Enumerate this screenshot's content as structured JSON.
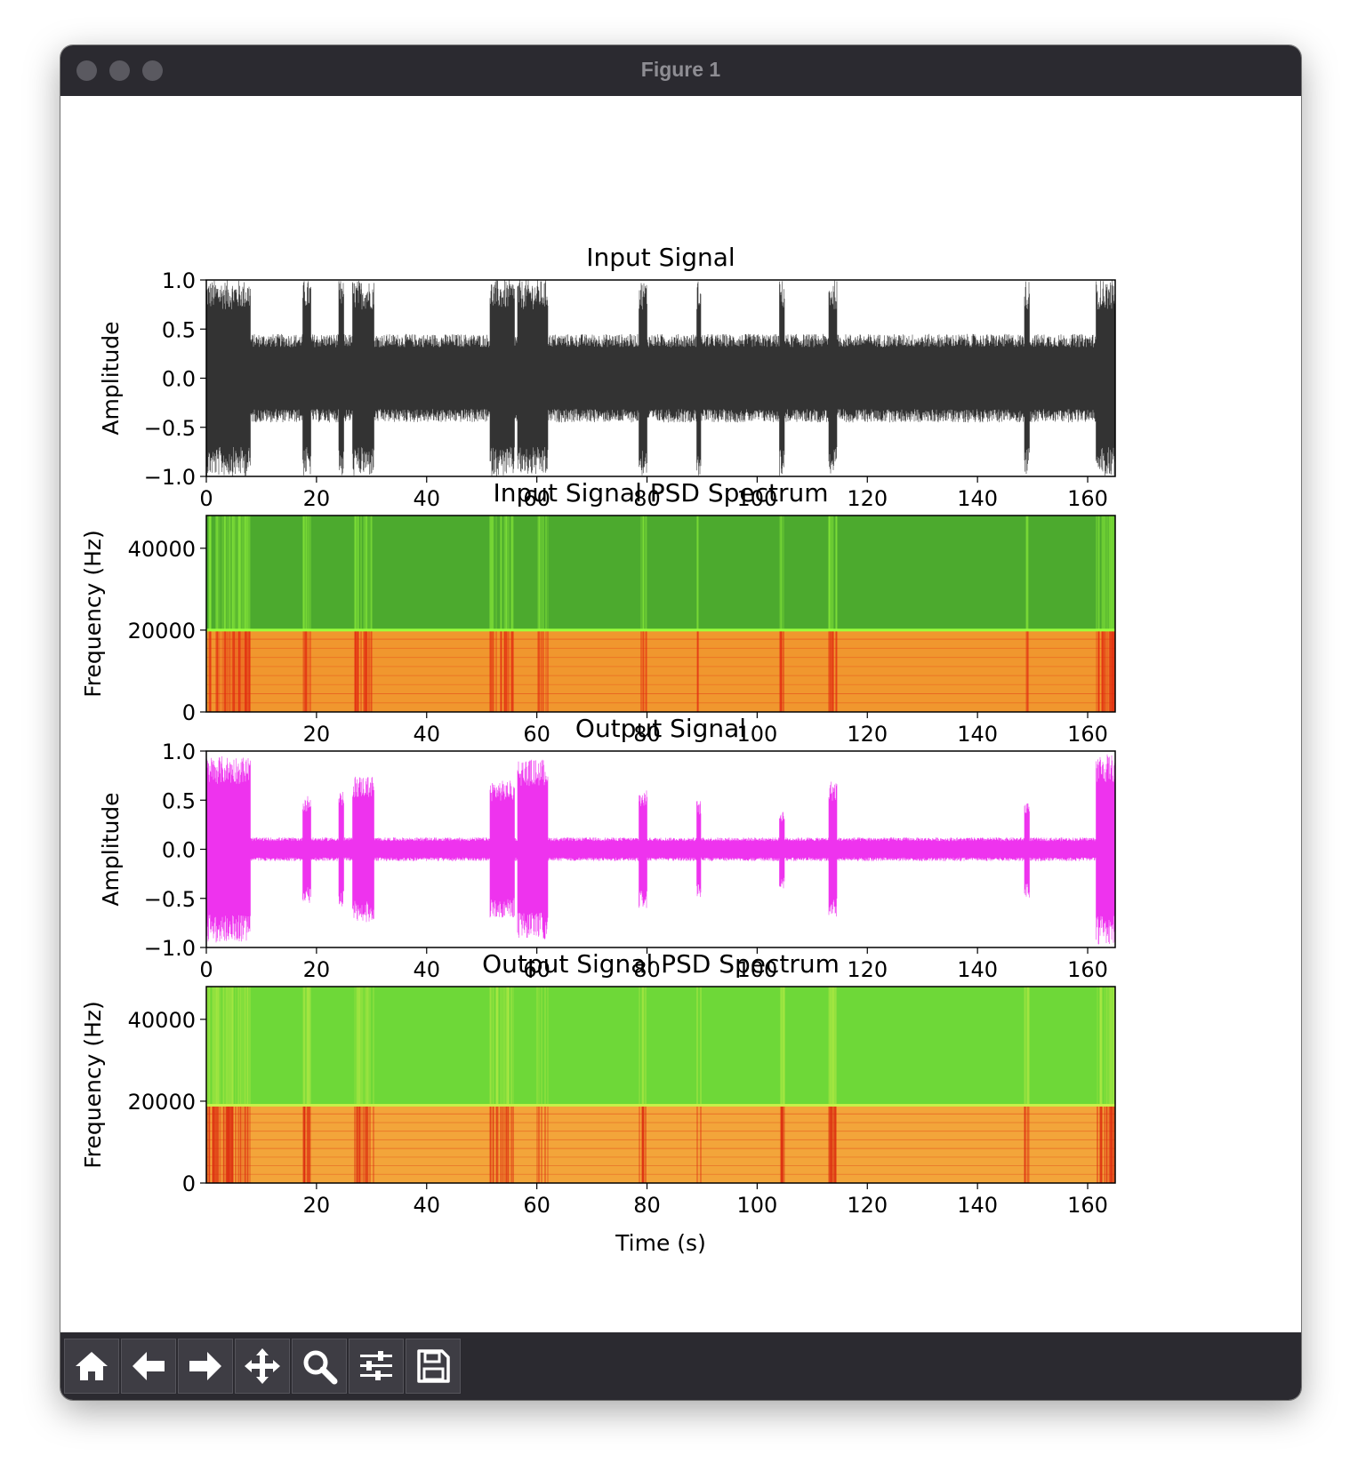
{
  "window": {
    "title": "Figure 1"
  },
  "toolbar": {
    "buttons": [
      {
        "icon": "home-icon"
      },
      {
        "icon": "back-arrow-icon"
      },
      {
        "icon": "forward-arrow-icon"
      },
      {
        "icon": "pan-icon"
      },
      {
        "icon": "zoom-icon"
      },
      {
        "icon": "configure-subplots-icon"
      },
      {
        "icon": "save-icon"
      }
    ]
  },
  "chart_data": [
    {
      "type": "line",
      "title": "Input Signal",
      "xlabel": "",
      "ylabel": "Amplitude",
      "xlim": [
        0,
        165
      ],
      "ylim": [
        -1.0,
        1.0
      ],
      "xticks": [
        0,
        20,
        40,
        60,
        80,
        100,
        120,
        140,
        160
      ],
      "yticks": [
        "1.0",
        "0.5",
        "0.0",
        "−0.5",
        "−1.0"
      ],
      "color": "#333333",
      "baseline_amplitude": 0.45,
      "bursts": [
        {
          "start": 0,
          "end": 8,
          "amplitude": 1.0
        },
        {
          "start": 17.5,
          "end": 19,
          "amplitude": 1.0
        },
        {
          "start": 24,
          "end": 25,
          "amplitude": 1.0
        },
        {
          "start": 26.5,
          "end": 30.5,
          "amplitude": 1.0
        },
        {
          "start": 51.5,
          "end": 56,
          "amplitude": 1.0
        },
        {
          "start": 56.5,
          "end": 62,
          "amplitude": 1.0
        },
        {
          "start": 78.5,
          "end": 80,
          "amplitude": 1.0
        },
        {
          "start": 89,
          "end": 89.8,
          "amplitude": 1.0
        },
        {
          "start": 104,
          "end": 105,
          "amplitude": 1.0
        },
        {
          "start": 113,
          "end": 114.5,
          "amplitude": 1.0
        },
        {
          "start": 148.5,
          "end": 149.5,
          "amplitude": 1.0
        },
        {
          "start": 161.5,
          "end": 165,
          "amplitude": 1.0
        }
      ]
    },
    {
      "type": "heatmap",
      "title": "Input Signal PSD Spectrum",
      "xlabel": "",
      "ylabel": "Frequency (Hz)",
      "xlim": [
        0,
        165
      ],
      "ylim": [
        0,
        48000
      ],
      "xticks": [
        20,
        40,
        60,
        80,
        100,
        120,
        140,
        160
      ],
      "yticks": [
        0,
        20000,
        40000
      ],
      "cutoff_hz": 20000,
      "colors": {
        "high_band": "#4caa2e",
        "cutoff_line": "#9cff3c",
        "low_band": "#f0972e",
        "burst": "#e22a10"
      },
      "bursts": [
        [
          0,
          8
        ],
        [
          17.5,
          19
        ],
        [
          26.5,
          30.5
        ],
        [
          51.5,
          56
        ],
        [
          60,
          62
        ],
        [
          78.5,
          80
        ],
        [
          89,
          89.8
        ],
        [
          104,
          105
        ],
        [
          113,
          114.5
        ],
        [
          148.5,
          149.5
        ],
        [
          161.5,
          165
        ]
      ]
    },
    {
      "type": "line",
      "title": "Output Signal",
      "xlabel": "",
      "ylabel": "Amplitude",
      "xlim": [
        0,
        165
      ],
      "ylim": [
        -1.0,
        1.0
      ],
      "xticks": [
        0,
        20,
        40,
        60,
        80,
        100,
        120,
        140,
        160
      ],
      "yticks": [
        "1.0",
        "0.5",
        "0.0",
        "−0.5",
        "−1.0"
      ],
      "color": "#ee33ee",
      "baseline_amplitude": 0.12,
      "bursts": [
        {
          "start": 0,
          "end": 8,
          "amplitude": 0.95
        },
        {
          "start": 17.5,
          "end": 19,
          "amplitude": 0.55
        },
        {
          "start": 24,
          "end": 25,
          "amplitude": 0.6
        },
        {
          "start": 26.5,
          "end": 30.5,
          "amplitude": 0.75
        },
        {
          "start": 51.5,
          "end": 56,
          "amplitude": 0.7
        },
        {
          "start": 56.5,
          "end": 62,
          "amplitude": 0.92
        },
        {
          "start": 78.5,
          "end": 80,
          "amplitude": 0.6
        },
        {
          "start": 89,
          "end": 89.8,
          "amplitude": 0.5
        },
        {
          "start": 104,
          "end": 105,
          "amplitude": 0.4
        },
        {
          "start": 113,
          "end": 114.5,
          "amplitude": 0.7
        },
        {
          "start": 148.5,
          "end": 149.5,
          "amplitude": 0.5
        },
        {
          "start": 161.5,
          "end": 165,
          "amplitude": 0.97
        }
      ]
    },
    {
      "type": "heatmap",
      "title": "Output Signal PSD Spectrum",
      "xlabel": "Time (s)",
      "ylabel": "Frequency (Hz)",
      "xlim": [
        0,
        165
      ],
      "ylim": [
        0,
        48000
      ],
      "xticks": [
        20,
        40,
        60,
        80,
        100,
        120,
        140,
        160
      ],
      "yticks": [
        0,
        20000,
        40000
      ],
      "cutoff_hz": 19000,
      "colors": {
        "high_band": "#6ed838",
        "cutoff_line": "#c8f048",
        "low_band": "#f3a53a",
        "burst": "#dd2d10"
      },
      "bursts": [
        [
          0,
          8
        ],
        [
          17.5,
          19
        ],
        [
          26.5,
          30.5
        ],
        [
          51.5,
          56
        ],
        [
          60,
          62
        ],
        [
          78.5,
          80
        ],
        [
          89,
          89.8
        ],
        [
          104,
          105
        ],
        [
          113,
          114.5
        ],
        [
          148.5,
          149.5
        ],
        [
          161.5,
          165
        ]
      ]
    }
  ]
}
